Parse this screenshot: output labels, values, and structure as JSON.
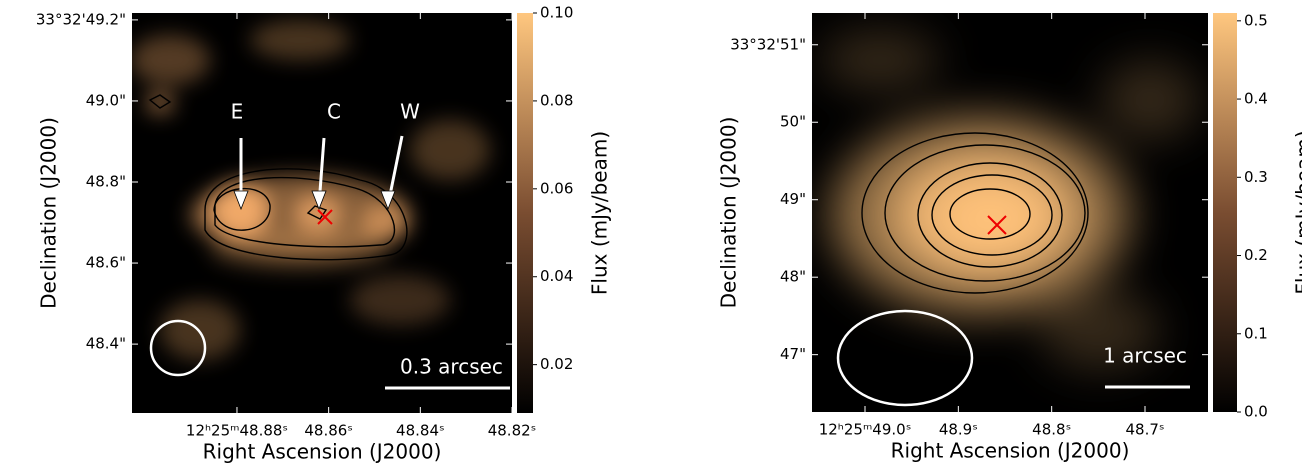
{
  "chart_data": [
    {
      "type": "image",
      "xlabel": "Right Ascension (J2000)",
      "ylabel": "Declination (J2000)",
      "xlim": [
        48.9029,
        48.82
      ],
      "ylim": [
        48.23,
        49.217
      ],
      "xticks": [
        {
          "value": 48.88,
          "label": "12ʰ25ᵐ48.88ˢ"
        },
        {
          "value": 48.86,
          "label": "48.86ˢ"
        },
        {
          "value": 48.84,
          "label": "48.84ˢ"
        },
        {
          "value": 48.82,
          "label": "48.82ˢ"
        }
      ],
      "yticks": [
        {
          "value": 49.2,
          "label": "33°32'49.2\""
        },
        {
          "value": 49.0,
          "label": "49.0\""
        },
        {
          "value": 48.8,
          "label": "48.8\""
        },
        {
          "value": 48.6,
          "label": "48.6\""
        },
        {
          "value": 48.4,
          "label": "48.4\""
        }
      ],
      "colorbar": {
        "label": "Flux (mJy/beam)",
        "lim": [
          0.009,
          0.1
        ],
        "ticks": [
          0.02,
          0.04,
          0.06,
          0.08,
          {
            "value": 0.1,
            "label": "0.10"
          }
        ]
      },
      "annotations": [
        "E",
        "C",
        "W"
      ],
      "scalebar": "0.3 arcsec"
    },
    {
      "type": "image",
      "xlabel": "Right Ascension (J2000)",
      "ylabel": "Declination (J2000)",
      "xlim": [
        49.0568,
        48.6325
      ],
      "ylim": [
        46.26,
        51.41
      ],
      "xticks": [
        {
          "value": 49.0,
          "label": "12ʰ25ᵐ49.0ˢ"
        },
        {
          "value": 48.9,
          "label": "48.9ˢ"
        },
        {
          "value": 48.8,
          "label": "48.8ˢ"
        },
        {
          "value": 48.7,
          "label": "48.7ˢ"
        }
      ],
      "yticks": [
        {
          "value": 51,
          "label": "33°32'51\""
        },
        {
          "value": 50,
          "label": "50\""
        },
        {
          "value": 49,
          "label": "49\""
        },
        {
          "value": 48,
          "label": "48\""
        },
        {
          "value": 47,
          "label": "47\""
        }
      ],
      "colorbar": {
        "label": "Flux (mJy/beam)",
        "lim": [
          0.0,
          0.51
        ],
        "ticks": [
          {
            "value": 0,
            "label": "0.0"
          },
          0.1,
          0.2,
          0.3,
          0.4,
          0.5
        ]
      },
      "scalebar": "1 arcsec"
    }
  ]
}
